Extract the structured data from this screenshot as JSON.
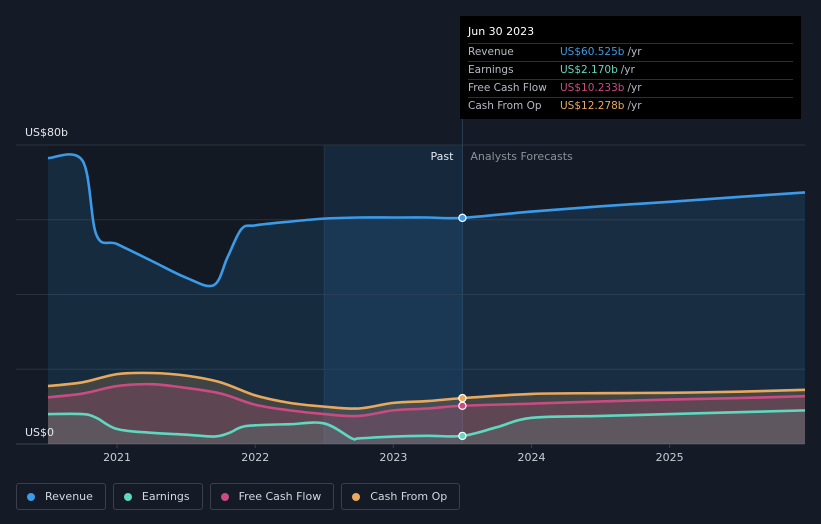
{
  "tooltip": {
    "date": "Jun 30 2023",
    "rows": [
      {
        "label": "Revenue",
        "value": "US$60.525b",
        "unit": "/yr",
        "color": "#3b9be8"
      },
      {
        "label": "Earnings",
        "value": "US$2.170b",
        "unit": "/yr",
        "color": "#5fd8c0"
      },
      {
        "label": "Free Cash Flow",
        "value": "US$10.233b",
        "unit": "/yr",
        "color": "#c94b82"
      },
      {
        "label": "Cash From Op",
        "value": "US$12.278b",
        "unit": "/yr",
        "color": "#e8a95c"
      }
    ]
  },
  "legend": [
    {
      "label": "Revenue",
      "color": "#3b9be8"
    },
    {
      "label": "Earnings",
      "color": "#5fd8c0"
    },
    {
      "label": "Free Cash Flow",
      "color": "#c94b82"
    },
    {
      "label": "Cash From Op",
      "color": "#e8a95c"
    }
  ],
  "chart_data": {
    "type": "line",
    "title": "",
    "ylabel_top": "US$80b",
    "ylabel_bottom": "US$0",
    "ylim": [
      0,
      80
    ],
    "xlim": [
      2020.5,
      2025.98
    ],
    "x_ticks": [
      2021,
      2022,
      2023,
      2024,
      2025
    ],
    "x_tick_labels": [
      "2021",
      "2022",
      "2023",
      "2024",
      "2025"
    ],
    "past_label": "Past",
    "forecast_label": "Analysts Forecasts",
    "divider_x": 2023.5,
    "highlight_start_x": 2022.5,
    "series": [
      {
        "name": "Revenue",
        "color": "#3b9be8",
        "x": [
          2020.5,
          2020.75,
          2020.85,
          2021.0,
          2021.25,
          2021.5,
          2021.7,
          2021.8,
          2021.9,
          2022.0,
          2022.25,
          2022.5,
          2022.75,
          2023.0,
          2023.25,
          2023.5,
          2024.0,
          2024.5,
          2025.0,
          2025.5,
          2025.98
        ],
        "y": [
          76.5,
          75.8,
          56.0,
          53.5,
          49.0,
          44.5,
          42.5,
          50.0,
          57.5,
          58.5,
          59.5,
          60.3,
          60.6,
          60.6,
          60.6,
          60.5,
          62.2,
          63.6,
          64.8,
          66.1,
          67.3
        ]
      },
      {
        "name": "Earnings",
        "color": "#5fd8c0",
        "x": [
          2020.5,
          2020.75,
          2020.85,
          2021.0,
          2021.25,
          2021.5,
          2021.7,
          2021.8,
          2021.9,
          2022.0,
          2022.25,
          2022.5,
          2022.7,
          2022.75,
          2023.0,
          2023.25,
          2023.5,
          2023.75,
          2024.0,
          2024.5,
          2025.0,
          2025.5,
          2025.98
        ],
        "y": [
          8.0,
          8.0,
          7.0,
          4.0,
          3.0,
          2.5,
          2.0,
          2.8,
          4.5,
          5.0,
          5.3,
          5.5,
          1.5,
          1.5,
          2.0,
          2.2,
          2.17,
          4.5,
          7.0,
          7.5,
          8.0,
          8.5,
          9.0
        ]
      },
      {
        "name": "Free Cash Flow",
        "color": "#c94b82",
        "x": [
          2020.5,
          2020.75,
          2021.0,
          2021.25,
          2021.5,
          2021.75,
          2022.0,
          2022.25,
          2022.5,
          2022.75,
          2023.0,
          2023.25,
          2023.5,
          2024.0,
          2024.5,
          2025.0,
          2025.5,
          2025.98
        ],
        "y": [
          12.5,
          13.5,
          15.5,
          16.0,
          15.0,
          13.5,
          10.5,
          9.0,
          8.0,
          7.5,
          9.0,
          9.5,
          10.233,
          10.8,
          11.4,
          11.9,
          12.3,
          12.8
        ]
      },
      {
        "name": "Cash From Op",
        "color": "#e8a95c",
        "x": [
          2020.5,
          2020.75,
          2021.0,
          2021.25,
          2021.5,
          2021.75,
          2022.0,
          2022.25,
          2022.5,
          2022.75,
          2023.0,
          2023.25,
          2023.5,
          2024.0,
          2024.5,
          2025.0,
          2025.5,
          2025.98
        ],
        "y": [
          15.5,
          16.5,
          18.7,
          19.0,
          18.3,
          16.5,
          13.0,
          11.0,
          10.0,
          9.5,
          11.0,
          11.5,
          12.278,
          13.4,
          13.6,
          13.7,
          14.0,
          14.5
        ]
      }
    ]
  }
}
